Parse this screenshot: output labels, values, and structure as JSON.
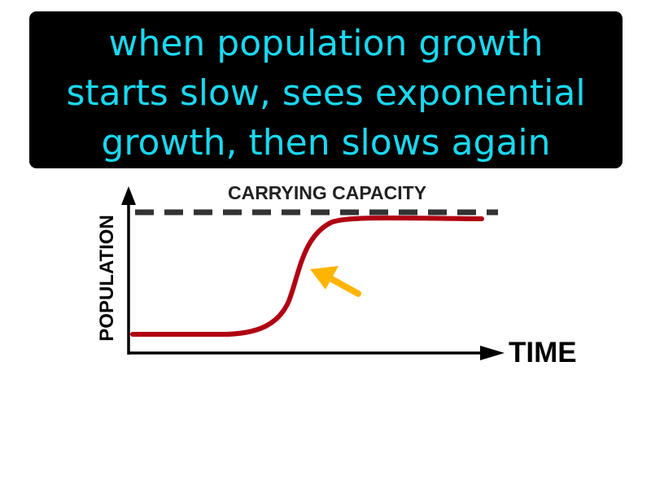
{
  "definition": {
    "lines": [
      "when population growth",
      "starts slow, sees exponential",
      "growth, then slows again"
    ],
    "color": "#1ad8f0",
    "background": "#000000"
  },
  "diagram": {
    "carrying_capacity_label": "CARRYING CAPACITY",
    "y_axis_label": "POPULATION",
    "x_axis_label": "TIME",
    "curve_color": "#b00012",
    "arrow_color": "#ffb400",
    "capacity_line_color": "#333333"
  }
}
